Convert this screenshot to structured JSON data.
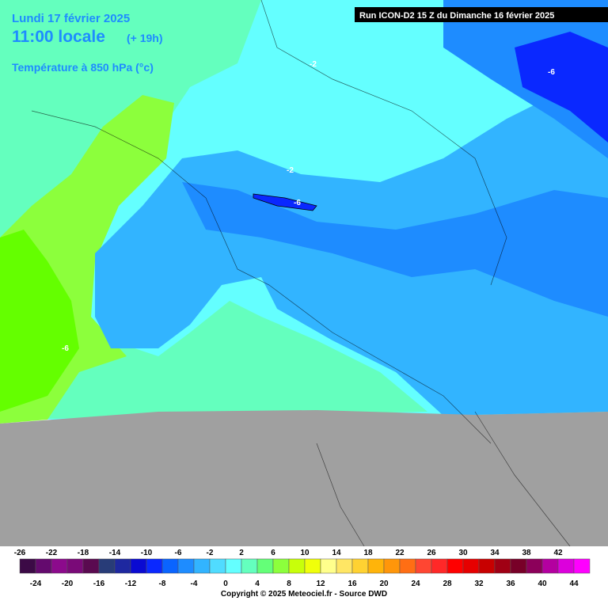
{
  "header": {
    "date": "Lundi 17 février 2025",
    "time": "11:00 locale",
    "lead": "(+ 19h)",
    "field": "Température à 850 hPa (°c)",
    "run": "Run ICON-D2 15 Z du Dimanche 16 février 2025"
  },
  "map": {
    "contour_labels": [
      "-2",
      "-6",
      "-2",
      "-6",
      "-6"
    ]
  },
  "legend": {
    "colors": [
      "#3c0a46",
      "#640a6e",
      "#8c0a8c",
      "#7a0a78",
      "#5a0a50",
      "#283c78",
      "#1e28a0",
      "#0a0ad2",
      "#0a28ff",
      "#0a64ff",
      "#1e8cff",
      "#32b4ff",
      "#50dcff",
      "#64ffff",
      "#64ffbe",
      "#64ff78",
      "#8cff3c",
      "#c8ff0a",
      "#f0ff0a",
      "#ffff8c",
      "#ffe664",
      "#ffd232",
      "#ffb40a",
      "#ff960a",
      "#ff6e14",
      "#ff4632",
      "#ff2828",
      "#ff0000",
      "#e60000",
      "#c80000",
      "#a00014",
      "#780028",
      "#8c005a",
      "#b400a0",
      "#dc00dc",
      "#ff00ff"
    ],
    "labels_top": [
      -26,
      -22,
      -18,
      -14,
      -10,
      -6,
      -2,
      2,
      6,
      10,
      14,
      18,
      22,
      26,
      30,
      34,
      38,
      42
    ],
    "labels_bottom": [
      -24,
      -20,
      -16,
      -12,
      -8,
      -4,
      0,
      4,
      8,
      12,
      16,
      20,
      24,
      28,
      32,
      36,
      40,
      44
    ]
  },
  "footer": {
    "copyright": "Copyright © 2025 Meteociel.fr - Source DWD"
  }
}
